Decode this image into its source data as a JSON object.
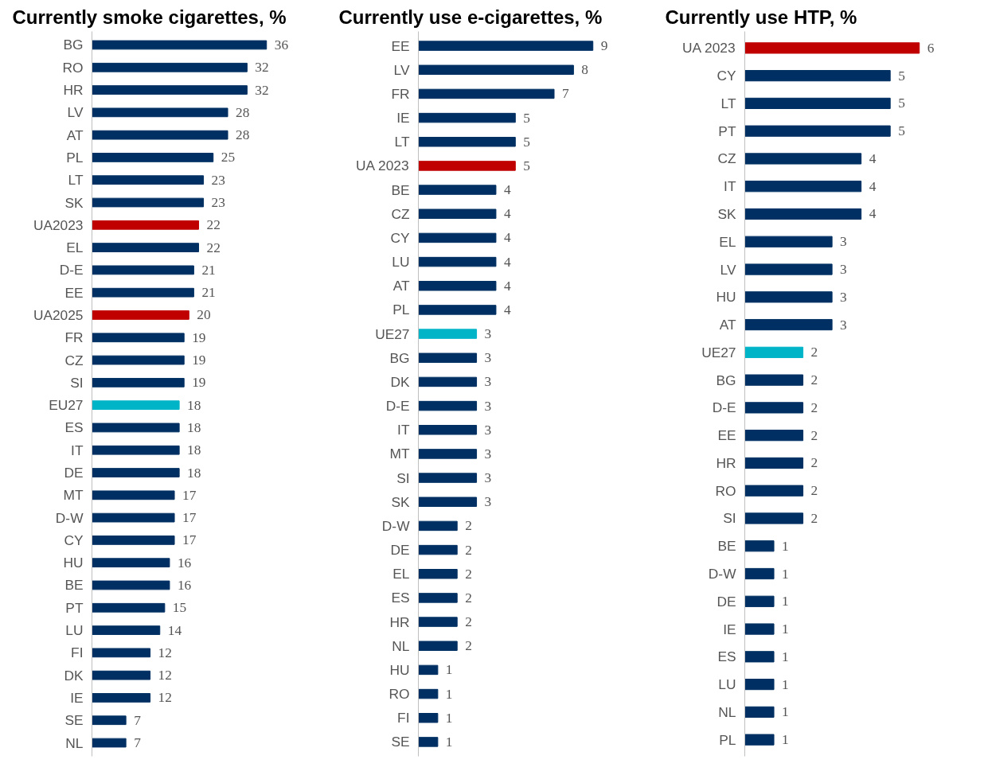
{
  "chart_data": [
    {
      "type": "bar",
      "orientation": "horizontal",
      "title": "Currently smoke cigarettes, %",
      "data_labels": true,
      "categories": [
        "BG",
        "RO",
        "HR",
        "LV",
        "AT",
        "PL",
        "LT",
        "SK",
        "UA2023",
        "EL",
        "D-E",
        "EE",
        "UA2025",
        "FR",
        "CZ",
        "SI",
        "EU27",
        "ES",
        "IT",
        "DE",
        "MT",
        "D-W",
        "CY",
        "HU",
        "BE",
        "PT",
        "LU",
        "FI",
        "DK",
        "IE",
        "SE",
        "NL"
      ],
      "values": [
        36,
        32,
        32,
        28,
        28,
        25,
        23,
        23,
        22,
        22,
        21,
        21,
        20,
        19,
        19,
        19,
        18,
        18,
        18,
        18,
        17,
        17,
        17,
        16,
        16,
        15,
        14,
        12,
        12,
        12,
        7,
        7
      ],
      "colors": [
        "#003063",
        "#003063",
        "#003063",
        "#003063",
        "#003063",
        "#003063",
        "#003063",
        "#003063",
        "#c00000",
        "#003063",
        "#003063",
        "#003063",
        "#c00000",
        "#003063",
        "#003063",
        "#003063",
        "#00b4c8",
        "#003063",
        "#003063",
        "#003063",
        "#003063",
        "#003063",
        "#003063",
        "#003063",
        "#003063",
        "#003063",
        "#003063",
        "#003063",
        "#003063",
        "#003063",
        "#003063",
        "#003063"
      ]
    },
    {
      "type": "bar",
      "orientation": "horizontal",
      "title": "Currently use e-cigarettes, %",
      "data_labels": true,
      "categories": [
        "EE",
        "LV",
        "FR",
        "IE",
        "LT",
        "UA 2023",
        "BE",
        "CZ",
        "CY",
        "LU",
        "AT",
        "PL",
        "UE27",
        "BG",
        "DK",
        "D-E",
        "IT",
        "MT",
        "SI",
        "SK",
        "D-W",
        "DE",
        "EL",
        "ES",
        "HR",
        "NL",
        "HU",
        "RO",
        "FI",
        "SE"
      ],
      "values": [
        9,
        8,
        7,
        5,
        5,
        5,
        4,
        4,
        4,
        4,
        4,
        4,
        3,
        3,
        3,
        3,
        3,
        3,
        3,
        3,
        2,
        2,
        2,
        2,
        2,
        2,
        1,
        1,
        1,
        1
      ],
      "colors": [
        "#003063",
        "#003063",
        "#003063",
        "#003063",
        "#003063",
        "#c00000",
        "#003063",
        "#003063",
        "#003063",
        "#003063",
        "#003063",
        "#003063",
        "#00b4c8",
        "#003063",
        "#003063",
        "#003063",
        "#003063",
        "#003063",
        "#003063",
        "#003063",
        "#003063",
        "#003063",
        "#003063",
        "#003063",
        "#003063",
        "#003063",
        "#003063",
        "#003063",
        "#003063",
        "#003063"
      ]
    },
    {
      "type": "bar",
      "orientation": "horizontal",
      "title": "Currently use HTP, %",
      "data_labels": true,
      "categories": [
        "UA 2023",
        "CY",
        "LT",
        "PT",
        "CZ",
        "IT",
        "SK",
        "EL",
        "LV",
        "HU",
        "AT",
        "UE27",
        "BG",
        "D-E",
        "EE",
        "HR",
        "RO",
        "SI",
        "BE",
        "D-W",
        "DE",
        "IE",
        "ES",
        "LU",
        "NL",
        "PL"
      ],
      "values": [
        6,
        5,
        5,
        5,
        4,
        4,
        4,
        3,
        3,
        3,
        3,
        2,
        2,
        2,
        2,
        2,
        2,
        2,
        1,
        1,
        1,
        1,
        1,
        1,
        1,
        1
      ],
      "colors": [
        "#c00000",
        "#003063",
        "#003063",
        "#003063",
        "#003063",
        "#003063",
        "#003063",
        "#003063",
        "#003063",
        "#003063",
        "#003063",
        "#00b4c8",
        "#003063",
        "#003063",
        "#003063",
        "#003063",
        "#003063",
        "#003063",
        "#003063",
        "#003063",
        "#003063",
        "#003063",
        "#003063",
        "#003063",
        "#003063",
        "#003063"
      ]
    }
  ]
}
